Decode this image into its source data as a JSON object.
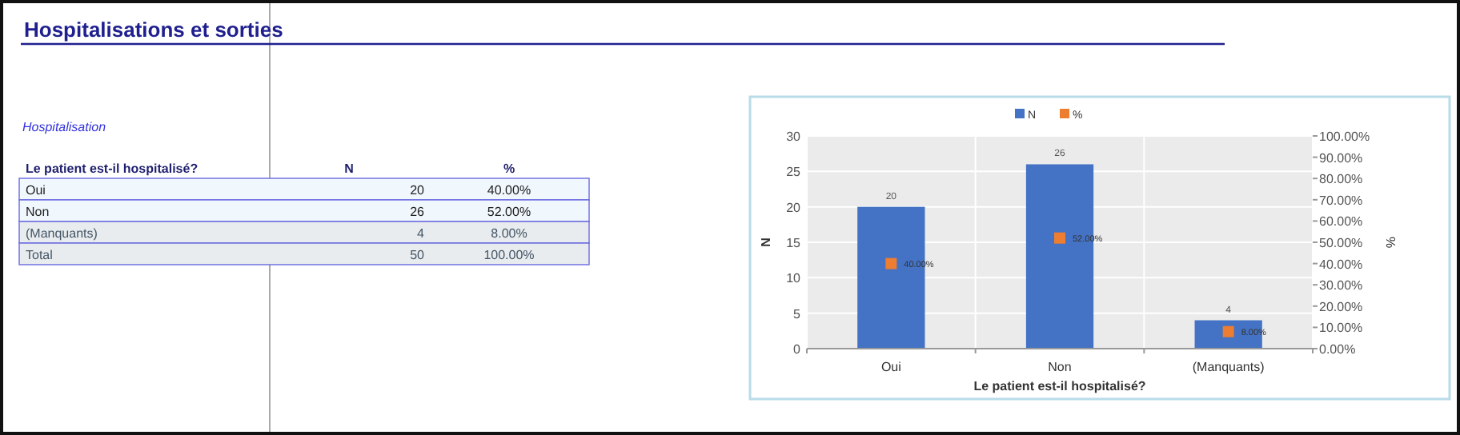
{
  "chart_data": [
    {
      "type": "other",
      "title": "Hospitalisations et sorties",
      "subtitle": "Hospitalisation",
      "annotations": [
        "Le patient est-il hospitalisé?",
        "N",
        "%",
        "Oui",
        "20",
        "40.00%",
        "Non",
        "26",
        "52.00%",
        "(Manquants)",
        "4",
        "8.00%",
        "Total",
        "50",
        "100.00%"
      ]
    },
    {
      "type": "bar",
      "categories": [
        "Oui",
        "Non",
        "(Manquants)"
      ],
      "xlabel": "Le patient est-il hospitalisé?",
      "ylabel": "N",
      "y2label": "%",
      "series": [
        {
          "name": "N",
          "type": "bar",
          "color": "#4472c4",
          "values": [
            20,
            26,
            4
          ],
          "value_labels": [
            "20",
            "26",
            "4"
          ]
        },
        {
          "name": "%",
          "type": "scatter",
          "axis": "y2",
          "color": "#ed7d31",
          "marker": "square",
          "values": [
            40,
            52,
            8
          ],
          "value_labels": [
            "40.00%",
            "52.00%",
            "8.00%"
          ]
        }
      ],
      "ylim": [
        0,
        30
      ],
      "yticks": [
        0,
        5,
        10,
        15,
        20,
        25,
        30
      ],
      "y2lim": [
        0,
        100
      ],
      "y2ticks": [
        {
          "value": 0,
          "label": "0.00%"
        },
        {
          "value": 10,
          "label": "10.00%"
        },
        {
          "value": 20,
          "label": "20.00%"
        },
        {
          "value": 30,
          "label": "30.00%"
        },
        {
          "value": 40,
          "label": "40.00%"
        },
        {
          "value": 50,
          "label": "50.00%"
        },
        {
          "value": 60,
          "label": "60.00%"
        },
        {
          "value": 70,
          "label": "70.00%"
        },
        {
          "value": 80,
          "label": "80.00%"
        },
        {
          "value": 90,
          "label": "90.00%"
        },
        {
          "value": 100,
          "label": "100.00%"
        }
      ],
      "grid": true,
      "legend": "top"
    }
  ]
}
